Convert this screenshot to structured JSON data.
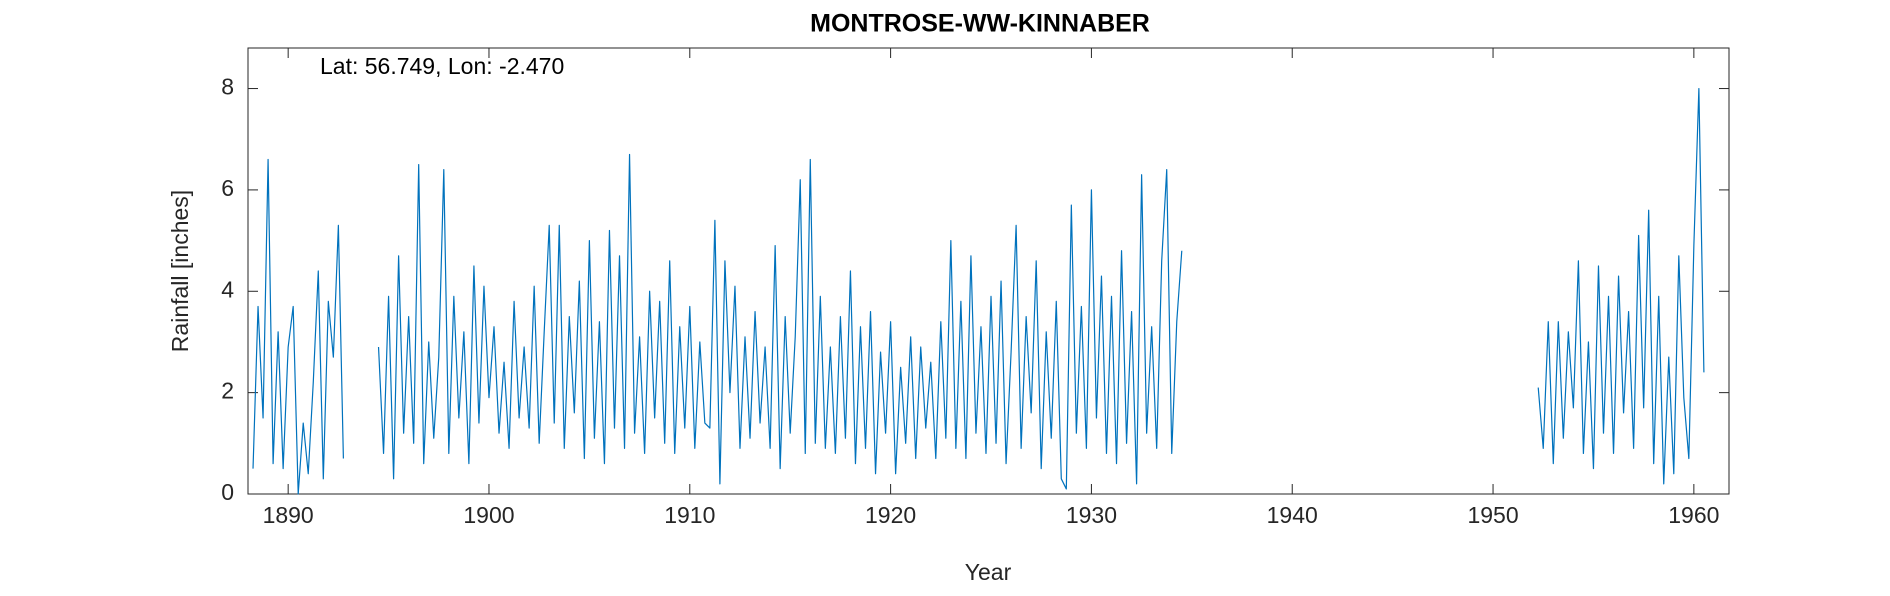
{
  "chart_data": {
    "type": "line",
    "title": "MONTROSE-WW-KINNABER",
    "annotation": "Lat: 56.749, Lon: -2.470",
    "x_label": "Year",
    "y_label": "Rainfall [inches]",
    "xlim": [
      1888,
      1961.75
    ],
    "xticks": [
      1890,
      1900,
      1910,
      1920,
      1930,
      1940,
      1950,
      1960
    ],
    "ylim": [
      0,
      8.8
    ],
    "yticks": [
      0,
      2,
      4,
      6,
      8
    ],
    "grid": false,
    "x": [
      1888.25,
      1888.5,
      1888.75,
      1889,
      1889.25,
      1889.5,
      1889.75,
      1890,
      1890.25,
      1890.5,
      1890.75,
      1891,
      1891.25,
      1891.5,
      1891.75,
      1892,
      1892.25,
      1892.5,
      1892.75,
      1893.5,
      1894.5,
      1894.75,
      1895,
      1895.25,
      1895.5,
      1895.75,
      1896,
      1896.25,
      1896.5,
      1896.75,
      1897,
      1897.25,
      1897.5,
      1897.75,
      1898,
      1898.25,
      1898.5,
      1898.75,
      1899,
      1899.25,
      1899.5,
      1899.75,
      1900,
      1900.25,
      1900.5,
      1900.75,
      1901,
      1901.25,
      1901.5,
      1901.75,
      1902,
      1902.25,
      1902.5,
      1902.75,
      1903,
      1903.25,
      1903.5,
      1903.75,
      1904,
      1904.25,
      1904.5,
      1904.75,
      1905,
      1905.25,
      1905.5,
      1905.75,
      1906,
      1906.25,
      1906.5,
      1906.75,
      1907,
      1907.25,
      1907.5,
      1907.75,
      1908,
      1908.25,
      1908.5,
      1908.75,
      1909,
      1909.25,
      1909.5,
      1909.75,
      1910,
      1910.25,
      1910.5,
      1910.75,
      1911,
      1911.25,
      1911.5,
      1911.75,
      1912,
      1912.25,
      1912.5,
      1912.75,
      1913,
      1913.25,
      1913.5,
      1913.75,
      1914,
      1914.25,
      1914.5,
      1914.75,
      1915,
      1915.25,
      1915.5,
      1915.75,
      1916,
      1916.25,
      1916.5,
      1916.75,
      1917,
      1917.25,
      1917.5,
      1917.75,
      1918,
      1918.25,
      1918.5,
      1918.75,
      1919,
      1919.25,
      1919.5,
      1919.75,
      1920,
      1920.25,
      1920.5,
      1920.75,
      1921,
      1921.25,
      1921.5,
      1921.75,
      1922,
      1922.25,
      1922.5,
      1922.75,
      1923,
      1923.25,
      1923.5,
      1923.75,
      1924,
      1924.25,
      1924.5,
      1924.75,
      1925,
      1925.25,
      1925.5,
      1925.75,
      1926,
      1926.25,
      1926.5,
      1926.75,
      1927,
      1927.25,
      1927.5,
      1927.75,
      1928,
      1928.25,
      1928.5,
      1928.75,
      1929,
      1929.25,
      1929.5,
      1929.75,
      1930,
      1930.25,
      1930.5,
      1930.75,
      1931,
      1931.25,
      1931.5,
      1931.75,
      1932,
      1932.25,
      1932.5,
      1932.75,
      1933,
      1933.25,
      1933.5,
      1933.75,
      1934,
      1934.25,
      1934.5,
      1943,
      1952.25,
      1952.5,
      1952.75,
      1953,
      1953.25,
      1953.5,
      1953.75,
      1954,
      1954.25,
      1954.5,
      1954.75,
      1955,
      1955.25,
      1955.5,
      1955.75,
      1956,
      1956.25,
      1956.5,
      1956.75,
      1957,
      1957.25,
      1957.5,
      1957.75,
      1958,
      1958.25,
      1958.5,
      1958.75,
      1959,
      1959.25,
      1959.5,
      1959.75,
      1960,
      1960.25,
      1960.5
    ],
    "series": [
      {
        "color": "#0072bd",
        "values": [
          0.5,
          3.7,
          1.5,
          6.6,
          0.6,
          3.2,
          0.5,
          2.9,
          3.7,
          0.0,
          1.4,
          0.4,
          2.2,
          4.4,
          0.3,
          3.8,
          2.7,
          5.3,
          0.7,
          null,
          2.9,
          0.8,
          3.9,
          0.3,
          4.7,
          1.2,
          3.5,
          1.0,
          6.5,
          0.6,
          3.0,
          1.1,
          2.7,
          6.4,
          0.8,
          3.9,
          1.5,
          3.2,
          0.6,
          4.5,
          1.4,
          4.1,
          1.9,
          3.3,
          1.2,
          2.6,
          0.9,
          3.8,
          1.5,
          2.9,
          1.3,
          4.1,
          1.0,
          3.2,
          5.3,
          1.4,
          5.3,
          0.9,
          3.5,
          1.6,
          4.2,
          0.7,
          5.0,
          1.1,
          3.4,
          0.6,
          5.2,
          1.3,
          4.7,
          0.9,
          6.7,
          1.2,
          3.1,
          0.8,
          4.0,
          1.5,
          3.8,
          1.0,
          4.6,
          0.8,
          3.3,
          1.3,
          3.7,
          0.9,
          3.0,
          1.4,
          1.3,
          5.4,
          0.2,
          4.6,
          2.0,
          4.1,
          0.9,
          3.1,
          1.1,
          3.6,
          1.4,
          2.9,
          0.9,
          4.9,
          0.5,
          3.5,
          1.2,
          3.1,
          6.2,
          0.8,
          6.6,
          1.0,
          3.9,
          0.9,
          2.9,
          0.8,
          3.5,
          1.1,
          4.4,
          0.6,
          3.3,
          0.9,
          3.6,
          0.4,
          2.8,
          1.2,
          3.4,
          0.4,
          2.5,
          1.0,
          3.1,
          0.7,
          2.9,
          1.3,
          2.6,
          0.7,
          3.4,
          1.1,
          5.0,
          0.9,
          3.8,
          0.7,
          4.7,
          1.2,
          3.3,
          0.8,
          3.9,
          1.0,
          4.2,
          0.6,
          2.8,
          5.3,
          0.9,
          3.5,
          1.6,
          4.6,
          0.5,
          3.2,
          1.1,
          3.8,
          0.3,
          0.1,
          5.7,
          1.2,
          3.7,
          0.9,
          6.0,
          1.5,
          4.3,
          0.8,
          3.9,
          0.6,
          4.8,
          1.0,
          3.6,
          0.2,
          6.3,
          1.2,
          3.3,
          0.9,
          4.6,
          6.4,
          0.8,
          3.4,
          4.8,
          null,
          2.1,
          0.9,
          3.4,
          0.6,
          3.4,
          1.1,
          3.2,
          1.7,
          4.6,
          0.8,
          3.0,
          0.5,
          4.5,
          1.2,
          3.9,
          0.8,
          4.3,
          1.6,
          3.6,
          0.9,
          5.1,
          1.7,
          5.6,
          0.6,
          3.9,
          0.2,
          2.7,
          0.4,
          4.7,
          1.9,
          0.7,
          4.9,
          8.0,
          2.4
        ]
      }
    ]
  }
}
